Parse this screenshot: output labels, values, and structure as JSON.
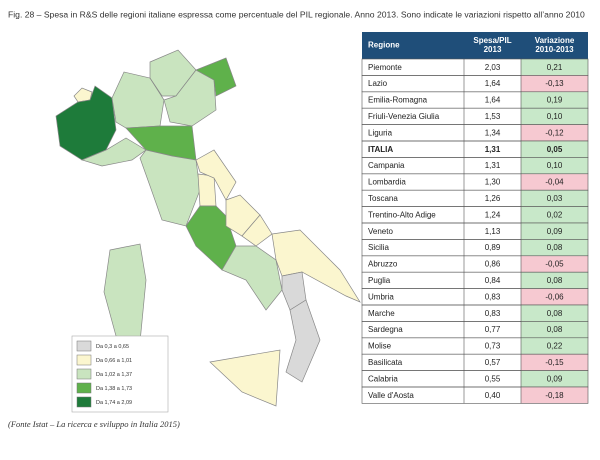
{
  "title": "Fig. 28 – Spesa in R&S delle regioni italiane espressa come percentuale del PIL regionale. Anno 2013. Sono indicate le variazioni rispetto all’anno 2010",
  "table": {
    "header": [
      "Regione",
      "Spesa/PIL 2013",
      "Variazione 2010-2013"
    ],
    "rows": [
      [
        "Piemonte",
        "2,03",
        "0,21"
      ],
      [
        "Lazio",
        "1,64",
        "-0,13"
      ],
      [
        "Emilia-Romagna",
        "1,64",
        "0,19"
      ],
      [
        "Friuli-Venezia Giulia",
        "1,53",
        "0,10"
      ],
      [
        "Liguria",
        "1,34",
        "-0,12"
      ],
      [
        "ITALIA",
        "1,31",
        "0,05"
      ],
      [
        "Campania",
        "1,31",
        "0,10"
      ],
      [
        "Lombardia",
        "1,30",
        "-0,04"
      ],
      [
        "Toscana",
        "1,26",
        "0,03"
      ],
      [
        "Trentino-Alto Adige",
        "1,24",
        "0,02"
      ],
      [
        "Veneto",
        "1,13",
        "0,09"
      ],
      [
        "Sicilia",
        "0,89",
        "0,08"
      ],
      [
        "Abruzzo",
        "0,86",
        "-0,05"
      ],
      [
        "Puglia",
        "0,84",
        "0,08"
      ],
      [
        "Umbria",
        "0,83",
        "-0,06"
      ],
      [
        "Marche",
        "0,83",
        "0,08"
      ],
      [
        "Sardegna",
        "0,77",
        "0,08"
      ],
      [
        "Molise",
        "0,73",
        "0,22"
      ],
      [
        "Basilicata",
        "0,57",
        "-0,15"
      ],
      [
        "Calabria",
        "0,55",
        "0,09"
      ],
      [
        "Valle d'Aosta",
        "0,40",
        "-0,18"
      ]
    ]
  },
  "legend": [
    {
      "label": "Da 0,3 a 0,65",
      "color": "#d9d9d9"
    },
    {
      "label": "Da 0,66 a 1,01",
      "color": "#fbf6cf"
    },
    {
      "label": "Da 1,02 a 1,37",
      "color": "#c9e4bf"
    },
    {
      "label": "Da 1,38 a 1,73",
      "color": "#5fb14b"
    },
    {
      "label": "Da 1,74 a 2,09",
      "color": "#1e7b3a"
    }
  ],
  "source": "(Fonte Istat – La ricerca e sviluppo in Italia 2015)"
}
